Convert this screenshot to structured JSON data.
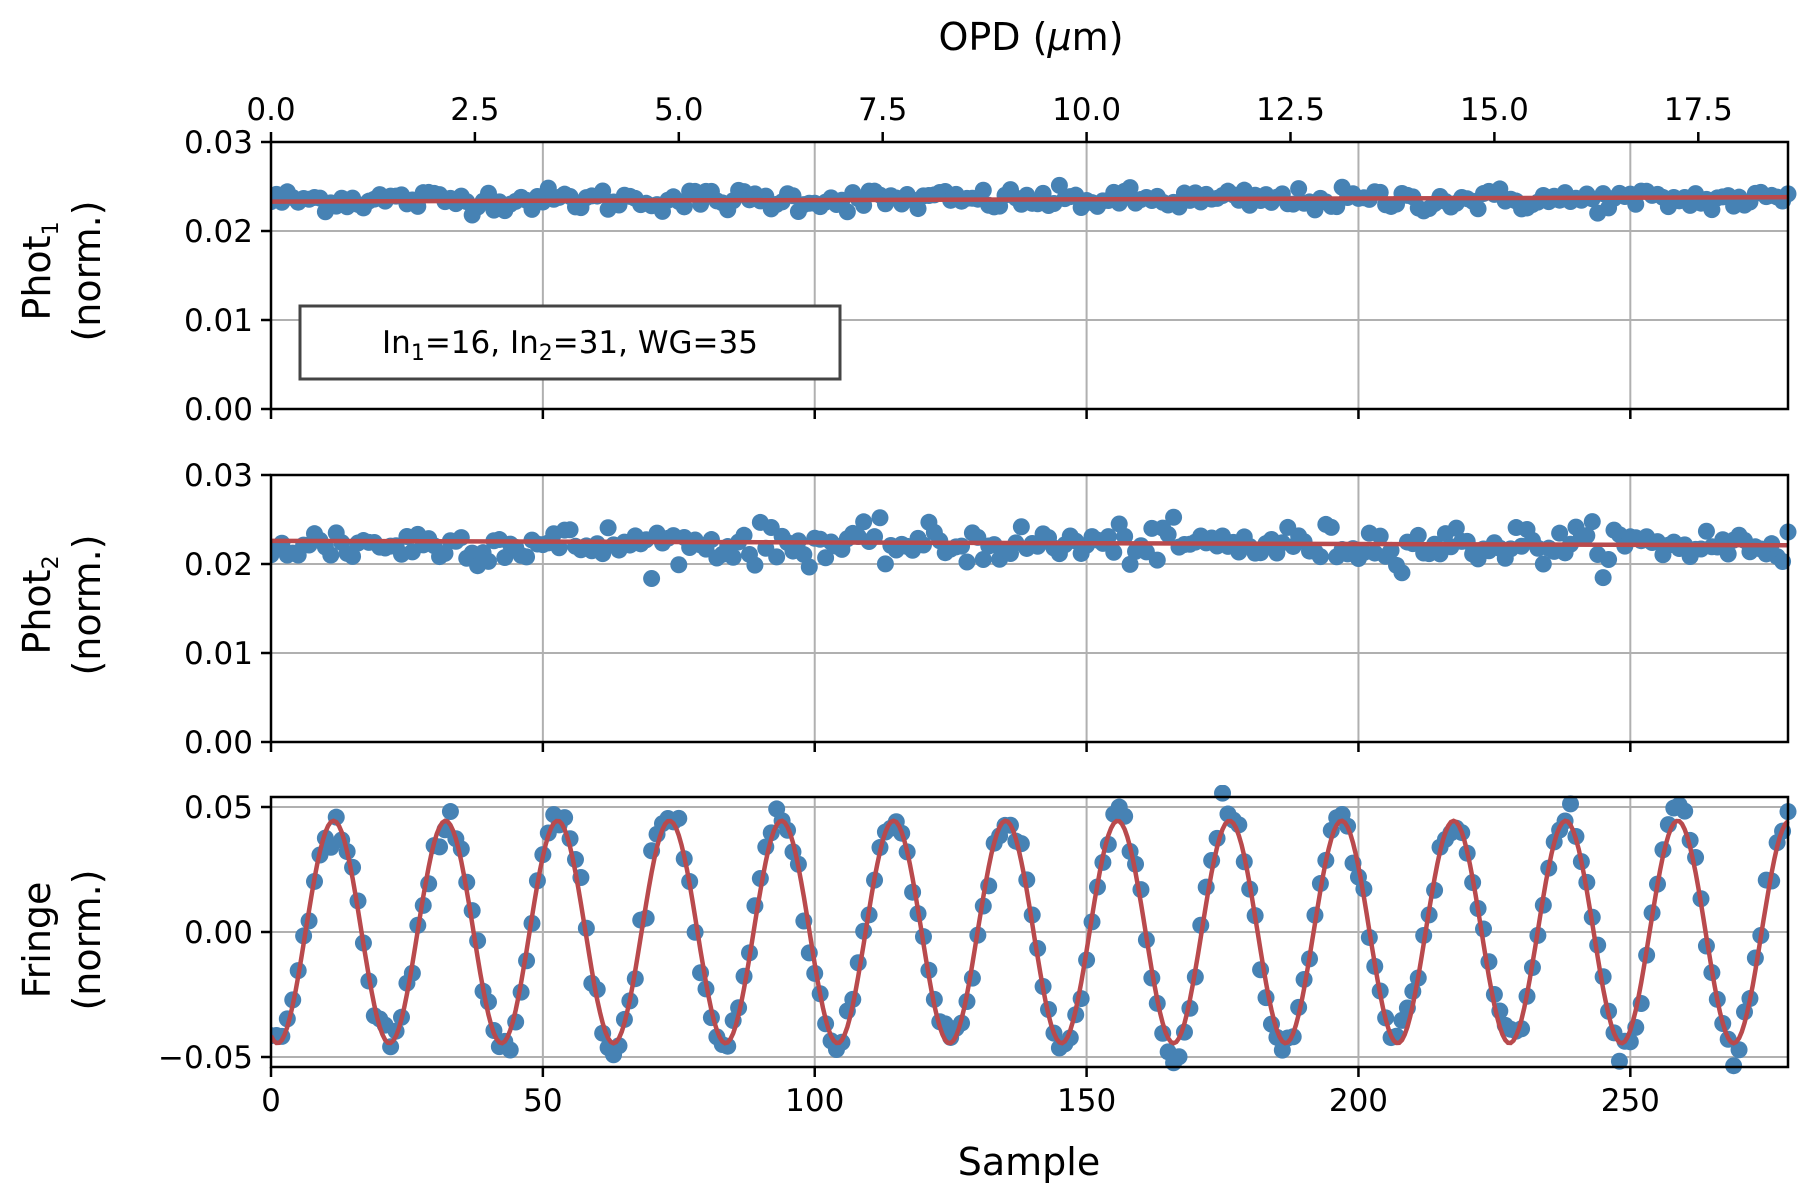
{
  "chart_data": {
    "type": "scatter",
    "shared_x": {
      "label": "Sample",
      "range": [
        0,
        279
      ],
      "ticks": [
        0,
        50,
        100,
        150,
        200,
        250
      ],
      "tick_labels": [
        "0",
        "50",
        "100",
        "150",
        "200",
        "250"
      ]
    },
    "top_axis": {
      "label": "OPD (μm)",
      "label_main": "OPD (",
      "label_mu": "μ",
      "label_end": "m)",
      "range": [
        0.0,
        18.6
      ],
      "ticks": [
        0.0,
        2.5,
        5.0,
        7.5,
        10.0,
        12.5,
        15.0,
        17.5
      ],
      "tick_labels": [
        "0.0",
        "2.5",
        "5.0",
        "7.5",
        "10.0",
        "12.5",
        "15.0",
        "17.5"
      ]
    },
    "panels": [
      {
        "id": "phot1",
        "ylabel": "Phot1 (norm.)",
        "ylabel_base": "Phot",
        "ylabel_sub": "1",
        "ylabel_line2": "(norm.)",
        "ylim": [
          0.0,
          0.03
        ],
        "yticks": [
          0.0,
          0.01,
          0.02,
          0.03
        ],
        "ytick_labels": [
          "0.00",
          "0.01",
          "0.02",
          "0.03"
        ],
        "series": [
          {
            "name": "data",
            "kind": "scatter",
            "color": "#4682b4",
            "model": "noise",
            "mean": 0.0235,
            "noise_sd": 0.00065,
            "n": 280
          },
          {
            "name": "fit",
            "kind": "line",
            "color": "#b94a4d",
            "start": 0.0233,
            "end": 0.0238
          }
        ],
        "annotation": {
          "text": "In1=16, In2=31, WG=35",
          "p1": "In",
          "s1": "1",
          "p2": "=16, In",
          "s2": "2",
          "p3": "=31, WG=35"
        }
      },
      {
        "id": "phot2",
        "ylabel": "Phot2 (norm.)",
        "ylabel_base": "Phot",
        "ylabel_sub": "2",
        "ylabel_line2": "(norm.)",
        "ylim": [
          0.0,
          0.03
        ],
        "yticks": [
          0.0,
          0.01,
          0.02,
          0.03
        ],
        "ytick_labels": [
          "0.00",
          "0.01",
          "0.02",
          "0.03"
        ],
        "series": [
          {
            "name": "data",
            "kind": "scatter",
            "color": "#4682b4",
            "model": "noise",
            "mean": 0.0222,
            "noise_sd": 0.0011,
            "n": 280
          },
          {
            "name": "fit",
            "kind": "line",
            "color": "#b94a4d",
            "start": 0.0226,
            "end": 0.0221
          }
        ]
      },
      {
        "id": "fringe",
        "ylabel": "Fringe (norm.)",
        "ylabel_base": "Fringe",
        "ylabel_sub": "",
        "ylabel_line2": "(norm.)",
        "ylim": [
          -0.054,
          0.054
        ],
        "yticks": [
          -0.05,
          0.0,
          0.05
        ],
        "ytick_labels": [
          "−0.05",
          "0.00",
          "0.05"
        ],
        "series": [
          {
            "name": "data",
            "kind": "scatter",
            "color": "#4682b4",
            "model": "sine",
            "amplitude": 0.0455,
            "period": 20.6,
            "phase_sample": 1.2,
            "noise_sd": 0.006,
            "n": 280
          },
          {
            "name": "fit",
            "kind": "line",
            "color": "#b94a4d",
            "model": "sine",
            "amplitude": 0.0445,
            "period": 20.6,
            "phase_sample": 1.2
          }
        ]
      }
    ]
  }
}
